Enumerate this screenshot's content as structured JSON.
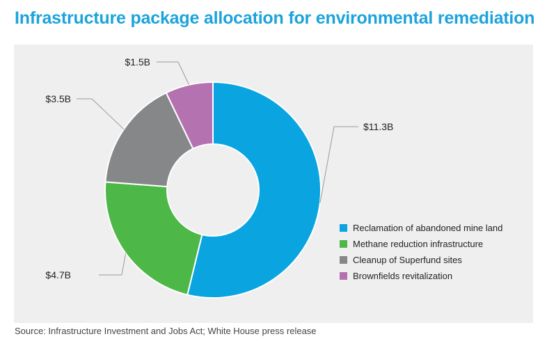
{
  "title": "Infrastructure package allocation for environmental remediation",
  "source": "Source: Infrastructure Investment and Jobs Act; White House press release",
  "chart_data": {
    "type": "pie",
    "variant": "donut",
    "categories": [
      "Reclamation of abandoned mine land",
      "Methane reduction infrastructure",
      "Cleanup of Superfund sites",
      "Brownfields revitalization"
    ],
    "values": [
      11.3,
      4.7,
      3.5,
      1.5
    ],
    "value_labels": [
      "$11.3B",
      "$4.7B",
      "$3.5B",
      "$1.5B"
    ],
    "colors": [
      "#0aa5e0",
      "#4db848",
      "#858789",
      "#b572b1"
    ],
    "unit": "billion USD",
    "legend_position": "right",
    "start_angle": "top, clockwise"
  }
}
